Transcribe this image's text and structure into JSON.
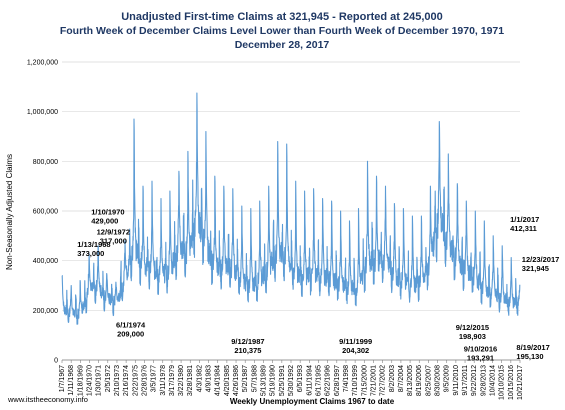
{
  "titles": [
    "Unadjusted First-time Claims at 321,945 - Reported at 245,000",
    "Fourth Week of December Claims Level Lower than Fourth Week of December 1970, 1971",
    "December 28, 2017"
  ],
  "website": "www.itstheeconomy.info",
  "colors": {
    "title": "#1f3864",
    "line": "#5b9bd5",
    "grid": "#d9d9d9",
    "axis": "#7f7f7f"
  },
  "chart_data": {
    "type": "line",
    "xlabel": "Weekly Unemployment Claims 1967 to date",
    "ylabel": "Non-Seasonally Adjusted Claims",
    "ylim": [
      0,
      1200000
    ],
    "yticks": [
      "0",
      "200,000",
      "400,000",
      "600,000",
      "800,000",
      "1,000,000",
      "1,200,000"
    ],
    "xlim": [
      1967.0,
      2018.0
    ],
    "x_tick_labels": [
      "1/7/1967",
      "1/11/1968",
      "1/18/1969",
      "1/24/1970",
      "1/30/1971",
      "2/5/1972",
      "2/10/1973",
      "2/16/1974",
      "2/22/1975",
      "2/28/1976",
      "3/5/1977",
      "3/11/1978",
      "3/17/1979",
      "3/22/1980",
      "3/28/1981",
      "4/3/1982",
      "4/9/1983",
      "4/14/1984",
      "4/20/1985",
      "4/26/1986",
      "5/2/1987",
      "5/7/1988",
      "5/13/1989",
      "5/19/1990",
      "5/25/1991",
      "5/30/1992",
      "6/5/1993",
      "6/11/1994",
      "6/17/1995",
      "6/22/1996",
      "6/28/1997",
      "7/4/1998",
      "7/10/1999",
      "7/15/2000",
      "7/21/2001",
      "7/27/2002",
      "8/2/2003",
      "8/7/2004",
      "8/13/2005",
      "8/19/2006",
      "8/25/2007",
      "8/30/2008",
      "9/5/2009",
      "9/11/2010",
      "9/17/2011",
      "9/22/2012",
      "9/28/2013",
      "10/4/2014",
      "10/10/2015",
      "10/15/2016",
      "10/21/2017"
    ],
    "annual_base": [
      [
        1967,
        210000
      ],
      [
        1968,
        190000
      ],
      [
        1969,
        185000
      ],
      [
        1970,
        280000
      ],
      [
        1971,
        290000
      ],
      [
        1972,
        250000
      ],
      [
        1973,
        230000
      ],
      [
        1974,
        320000
      ],
      [
        1975,
        460000
      ],
      [
        1976,
        380000
      ],
      [
        1977,
        370000
      ],
      [
        1978,
        340000
      ],
      [
        1979,
        360000
      ],
      [
        1980,
        450000
      ],
      [
        1981,
        430000
      ],
      [
        1982,
        580000
      ],
      [
        1983,
        470000
      ],
      [
        1984,
        370000
      ],
      [
        1985,
        380000
      ],
      [
        1986,
        370000
      ],
      [
        1987,
        320000
      ],
      [
        1988,
        300000
      ],
      [
        1989,
        320000
      ],
      [
        1990,
        370000
      ],
      [
        1991,
        440000
      ],
      [
        1992,
        410000
      ],
      [
        1993,
        350000
      ],
      [
        1994,
        330000
      ],
      [
        1995,
        350000
      ],
      [
        1996,
        340000
      ],
      [
        1997,
        320000
      ],
      [
        1998,
        310000
      ],
      [
        1999,
        290000
      ],
      [
        2000,
        290000
      ],
      [
        2001,
        400000
      ],
      [
        2002,
        400000
      ],
      [
        2003,
        400000
      ],
      [
        2004,
        340000
      ],
      [
        2005,
        320000
      ],
      [
        2006,
        300000
      ],
      [
        2007,
        310000
      ],
      [
        2008,
        390000
      ],
      [
        2009,
        580000
      ],
      [
        2010,
        460000
      ],
      [
        2011,
        400000
      ],
      [
        2012,
        360000
      ],
      [
        2013,
        330000
      ],
      [
        2014,
        290000
      ],
      [
        2015,
        270000
      ],
      [
        2016,
        250000
      ],
      [
        2017,
        230000
      ],
      [
        2018,
        235000
      ]
    ],
    "annual_peaks": [
      [
        1967,
        340000
      ],
      [
        1968,
        300000
      ],
      [
        1969,
        320000
      ],
      [
        1970,
        429000
      ],
      [
        1971,
        460000
      ],
      [
        1972,
        317000
      ],
      [
        1973,
        300000
      ],
      [
        1974,
        480000
      ],
      [
        1975,
        970000
      ],
      [
        1976,
        700000
      ],
      [
        1977,
        720000
      ],
      [
        1978,
        650000
      ],
      [
        1979,
        680000
      ],
      [
        1980,
        760000
      ],
      [
        1981,
        840000
      ],
      [
        1982,
        1075000
      ],
      [
        1983,
        920000
      ],
      [
        1984,
        740000
      ],
      [
        1985,
        700000
      ],
      [
        1986,
        690000
      ],
      [
        1987,
        620000
      ],
      [
        1988,
        610000
      ],
      [
        1989,
        640000
      ],
      [
        1990,
        700000
      ],
      [
        1991,
        880000
      ],
      [
        1992,
        870000
      ],
      [
        1993,
        720000
      ],
      [
        1994,
        680000
      ],
      [
        1995,
        690000
      ],
      [
        1996,
        650000
      ],
      [
        1997,
        640000
      ],
      [
        1998,
        600000
      ],
      [
        1999,
        560000
      ],
      [
        2000,
        610000
      ],
      [
        2001,
        800000
      ],
      [
        2002,
        740000
      ],
      [
        2003,
        700000
      ],
      [
        2004,
        630000
      ],
      [
        2005,
        610000
      ],
      [
        2006,
        580000
      ],
      [
        2007,
        580000
      ],
      [
        2008,
        700000
      ],
      [
        2009,
        960000
      ],
      [
        2010,
        830000
      ],
      [
        2011,
        710000
      ],
      [
        2012,
        640000
      ],
      [
        2013,
        600000
      ],
      [
        2014,
        560000
      ],
      [
        2015,
        500000
      ],
      [
        2016,
        460000
      ],
      [
        2017,
        412311
      ]
    ],
    "annotations": [
      {
        "date": "1/13/1968",
        "value": "373,000",
        "x": 1968.03,
        "y": 373000
      },
      {
        "date": "1/10/1970",
        "value": "429,000",
        "x": 1970.03,
        "y": 429000
      },
      {
        "date": "12/9/1972",
        "value": "317,000",
        "x": 1972.94,
        "y": 317000
      },
      {
        "date": "6/1/1974",
        "value": "209,000",
        "x": 1974.42,
        "y": 209000
      },
      {
        "date": "9/12/1987",
        "value": "210,375",
        "x": 1987.7,
        "y": 210375
      },
      {
        "date": "9/11/1999",
        "value": "204,302",
        "x": 1999.7,
        "y": 204302
      },
      {
        "date": "9/12/2015",
        "value": "198,903",
        "x": 2015.7,
        "y": 198903
      },
      {
        "date": "9/10/2016",
        "value": "193,291",
        "x": 2016.69,
        "y": 193291
      },
      {
        "date": "8/19/2017",
        "value": "195,130",
        "x": 2017.63,
        "y": 195130
      },
      {
        "date": "1/1/2017",
        "value": "412,311",
        "x": 2017.0,
        "y": 412311
      },
      {
        "date": "12/23/2017",
        "value": "321,945",
        "x": 2017.98,
        "y": 321945
      }
    ]
  }
}
